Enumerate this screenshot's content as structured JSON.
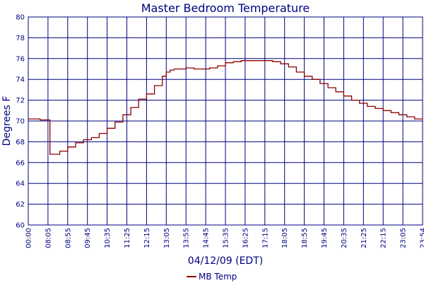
{
  "chart_data": {
    "type": "line",
    "title": "Master Bedroom Temperature",
    "xlabel": "04/12/09 (EDT)",
    "ylabel": "Degrees F",
    "ylim": [
      60,
      80
    ],
    "yticks": [
      60,
      62,
      64,
      66,
      68,
      70,
      72,
      74,
      76,
      78,
      80
    ],
    "xticks": [
      "00:00",
      "08:05",
      "08:55",
      "09:45",
      "10:35",
      "11:25",
      "12:15",
      "13:05",
      "13:55",
      "14:45",
      "15:35",
      "16:25",
      "17:15",
      "18:05",
      "18:55",
      "19:45",
      "20:35",
      "21:25",
      "22:15",
      "23:05",
      "23:54"
    ],
    "grid": true,
    "legend": "bottom",
    "colors": {
      "line": "#8b0000",
      "grid": "#000080",
      "text": "#000080"
    },
    "series": [
      {
        "name": "MB Temp",
        "x": [
          0.0,
          0.6,
          1.1,
          1.2,
          1.6,
          2.0,
          2.4,
          2.8,
          3.2,
          3.6,
          4.0,
          4.4,
          4.8,
          5.2,
          5.6,
          6.0,
          6.4,
          6.8,
          7.0,
          7.2,
          7.4,
          7.6,
          7.8,
          8.0,
          8.4,
          8.8,
          9.2,
          9.6,
          10.0,
          10.4,
          10.8,
          11.2,
          11.6,
          12.0,
          12.4,
          12.8,
          13.2,
          13.6,
          14.0,
          14.4,
          14.8,
          15.2,
          15.6,
          16.0,
          16.4,
          16.8,
          17.2,
          17.6,
          18.0,
          18.4,
          18.8,
          19.2,
          19.6,
          20.0
        ],
        "y": [
          70.2,
          70.1,
          66.8,
          66.8,
          67.1,
          67.5,
          67.9,
          68.2,
          68.4,
          68.8,
          69.3,
          69.9,
          70.6,
          71.3,
          72.1,
          72.6,
          73.4,
          74.3,
          74.7,
          74.9,
          75.0,
          75.0,
          75.0,
          75.1,
          75.0,
          75.0,
          75.1,
          75.3,
          75.6,
          75.7,
          75.8,
          75.8,
          75.8,
          75.8,
          75.7,
          75.5,
          75.2,
          74.7,
          74.3,
          74.0,
          73.6,
          73.2,
          72.8,
          72.4,
          72.0,
          71.7,
          71.4,
          71.2,
          71.0,
          70.8,
          70.6,
          70.4,
          70.2,
          70.1
        ]
      }
    ]
  }
}
